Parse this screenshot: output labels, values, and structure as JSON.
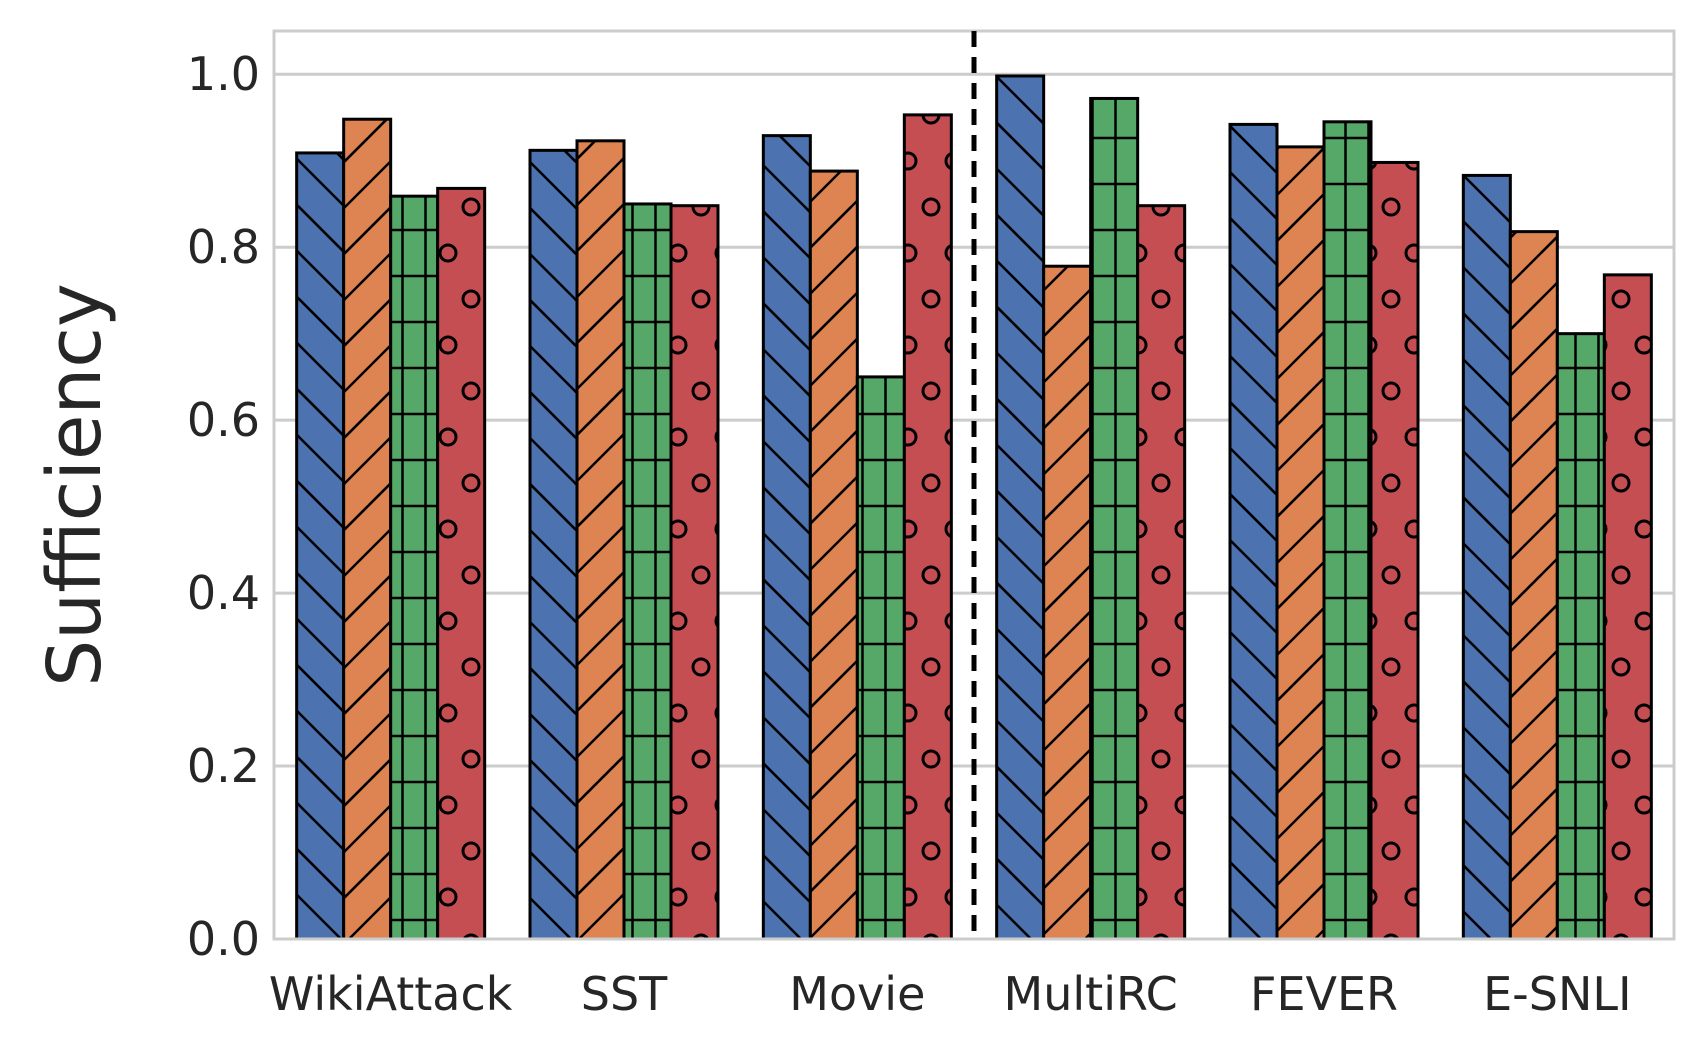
{
  "chart_data": {
    "type": "bar",
    "title": "",
    "xlabel": "",
    "ylabel": "Sufficiency",
    "ylim": [
      0,
      1.05
    ],
    "yticks": [
      0.0,
      0.2,
      0.4,
      0.6,
      0.8,
      1.0
    ],
    "ytick_labels": [
      "0.0",
      "0.2",
      "0.4",
      "0.6",
      "0.8",
      "1.0"
    ],
    "grid": "horizontal",
    "categories": [
      "WikiAttack",
      "SST",
      "Movie",
      "MultiRC",
      "FEVER",
      "E-SNLI"
    ],
    "separator_after_category": "Movie",
    "series": [
      {
        "name": "series-1",
        "color": "#4c72b0",
        "hatch": "backslash",
        "values": [
          0.909,
          0.912,
          0.929,
          0.998,
          0.942,
          0.883
        ]
      },
      {
        "name": "series-2",
        "color": "#dd8452",
        "hatch": "slash",
        "values": [
          0.948,
          0.923,
          0.888,
          0.778,
          0.916,
          0.818
        ]
      },
      {
        "name": "series-3",
        "color": "#55a868",
        "hatch": "grid",
        "values": [
          0.859,
          0.85,
          0.65,
          0.972,
          0.945,
          0.7
        ]
      },
      {
        "name": "series-4",
        "color": "#c44e52",
        "hatch": "circles",
        "values": [
          0.868,
          0.848,
          0.953,
          0.848,
          0.898,
          0.768
        ]
      }
    ]
  }
}
